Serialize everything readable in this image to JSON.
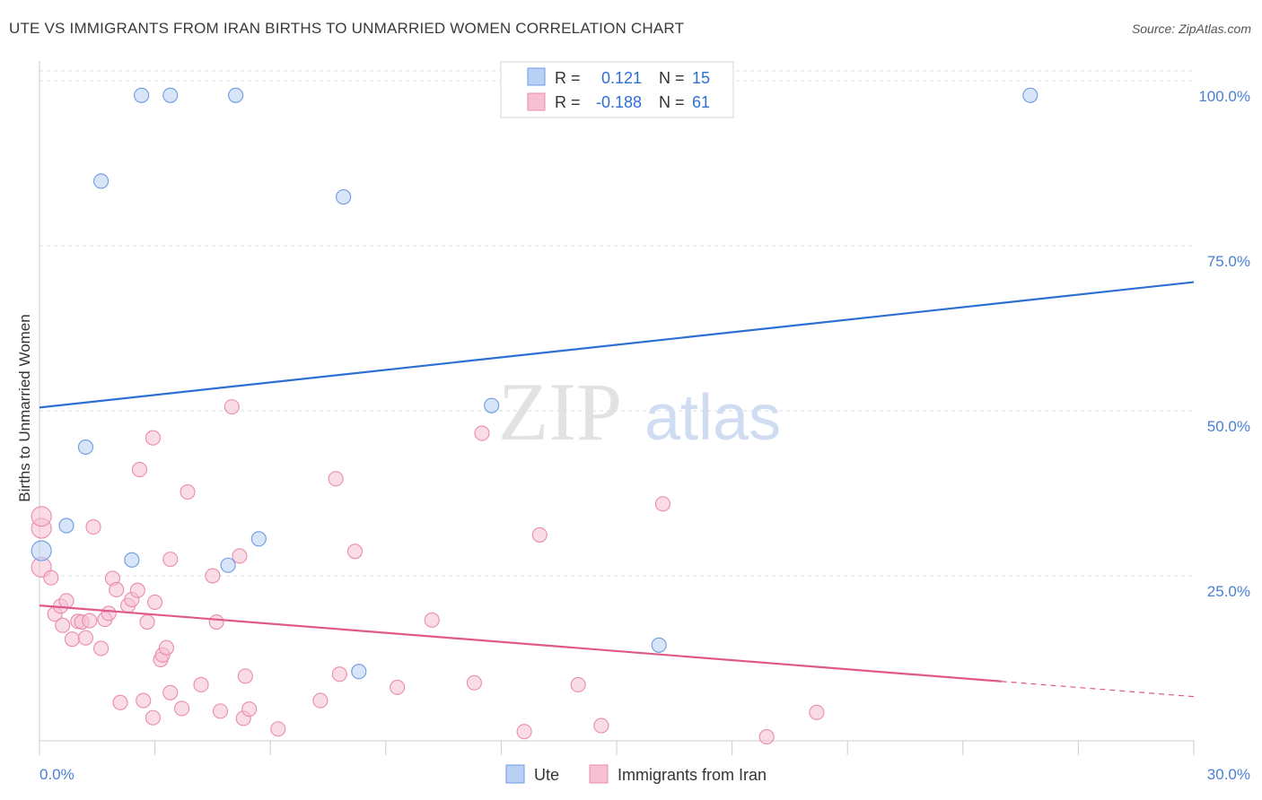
{
  "header": {
    "title": "UTE VS IMMIGRANTS FROM IRAN BIRTHS TO UNMARRIED WOMEN CORRELATION CHART",
    "source": "Source: ZipAtlas.com"
  },
  "watermark": {
    "zip": "ZIP",
    "atlas": "atlas"
  },
  "colors": {
    "ute": "#2e6fd3",
    "ute_fill": "#b8d0f3",
    "iran": "#e0588b",
    "iran_fill": "#f6bfd2",
    "grid": "#dddddd",
    "tick_label": "#4a7fd6"
  },
  "chart_data": {
    "type": "scatter",
    "title": "UTE VS IMMIGRANTS FROM IRAN BIRTHS TO UNMARRIED WOMEN CORRELATION CHART",
    "xlabel": "",
    "ylabel": "Births to Unmarried Women",
    "xlim": [
      0,
      30
    ],
    "ylim": [
      0,
      103
    ],
    "x_tick_labels": [
      "0.0%",
      "30.0%"
    ],
    "y_ticks": [
      25,
      50,
      75,
      100
    ],
    "y_tick_labels": [
      "25.0%",
      "50.0%",
      "75.0%",
      "100.0%"
    ],
    "grid": true,
    "legend_position": "top-center",
    "stats": [
      {
        "r_label": "R =",
        "r_value": "0.121",
        "n_label": "N =",
        "n_value": "15"
      },
      {
        "r_label": "R =",
        "r_value": "-0.188",
        "n_label": "N =",
        "n_value": "61"
      }
    ],
    "series": [
      {
        "name": "Ute",
        "color": "#2e6fd3",
        "trend": {
          "x": [
            0,
            30
          ],
          "y": [
            50.5,
            69.5
          ],
          "dashed_from": null
        },
        "points": [
          [
            2.65,
            97.8
          ],
          [
            3.4,
            97.8
          ],
          [
            5.1,
            97.8
          ],
          [
            25.75,
            97.8
          ],
          [
            1.6,
            84.8
          ],
          [
            7.9,
            82.4
          ],
          [
            11.75,
            50.8
          ],
          [
            1.2,
            44.5
          ],
          [
            0.7,
            32.6
          ],
          [
            0.05,
            28.8
          ],
          [
            2.4,
            27.4
          ],
          [
            4.9,
            26.6
          ],
          [
            5.7,
            30.6
          ],
          [
            16.1,
            14.5
          ],
          [
            8.3,
            10.5
          ]
        ]
      },
      {
        "name": "Immigrants from Iran",
        "color": "#e0588b",
        "trend": {
          "x": [
            0,
            30
          ],
          "y": [
            20.5,
            6.7
          ],
          "dashed_from": 25.0
        },
        "points": [
          [
            0.05,
            32.2
          ],
          [
            0.05,
            26.3
          ],
          [
            0.3,
            24.7
          ],
          [
            0.4,
            19.2
          ],
          [
            0.55,
            20.4
          ],
          [
            0.6,
            17.5
          ],
          [
            0.7,
            21.2
          ],
          [
            0.85,
            15.4
          ],
          [
            1.0,
            18.1
          ],
          [
            1.1,
            18.0
          ],
          [
            1.2,
            15.6
          ],
          [
            1.3,
            18.2
          ],
          [
            1.4,
            32.4
          ],
          [
            1.6,
            14.0
          ],
          [
            1.7,
            18.4
          ],
          [
            1.8,
            19.3
          ],
          [
            1.9,
            24.6
          ],
          [
            2.0,
            22.9
          ],
          [
            2.1,
            5.8
          ],
          [
            2.3,
            20.5
          ],
          [
            2.4,
            21.4
          ],
          [
            2.55,
            22.8
          ],
          [
            2.6,
            41.1
          ],
          [
            2.7,
            6.1
          ],
          [
            2.8,
            18.0
          ],
          [
            2.95,
            3.5
          ],
          [
            2.95,
            45.9
          ],
          [
            3.0,
            21.0
          ],
          [
            3.15,
            12.3
          ],
          [
            3.2,
            13.0
          ],
          [
            3.3,
            14.1
          ],
          [
            3.4,
            27.5
          ],
          [
            3.4,
            7.3
          ],
          [
            3.7,
            4.9
          ],
          [
            3.85,
            37.7
          ],
          [
            4.2,
            8.5
          ],
          [
            4.5,
            25.0
          ],
          [
            4.6,
            18.0
          ],
          [
            4.7,
            4.5
          ],
          [
            5.0,
            50.6
          ],
          [
            5.2,
            28.0
          ],
          [
            5.3,
            3.4
          ],
          [
            5.35,
            9.8
          ],
          [
            5.45,
            4.8
          ],
          [
            6.2,
            1.8
          ],
          [
            7.3,
            6.1
          ],
          [
            7.7,
            39.7
          ],
          [
            7.8,
            10.1
          ],
          [
            8.2,
            28.7
          ],
          [
            9.3,
            8.1
          ],
          [
            10.2,
            18.3
          ],
          [
            11.3,
            8.8
          ],
          [
            11.5,
            46.6
          ],
          [
            12.6,
            1.4
          ],
          [
            13.0,
            31.2
          ],
          [
            14.0,
            8.5
          ],
          [
            14.6,
            2.3
          ],
          [
            16.2,
            35.9
          ],
          [
            18.9,
            0.6
          ],
          [
            20.2,
            4.3
          ],
          [
            0.05,
            34.0
          ]
        ]
      }
    ]
  },
  "legend": {
    "series1": "Ute",
    "series2": "Immigrants from Iran"
  }
}
